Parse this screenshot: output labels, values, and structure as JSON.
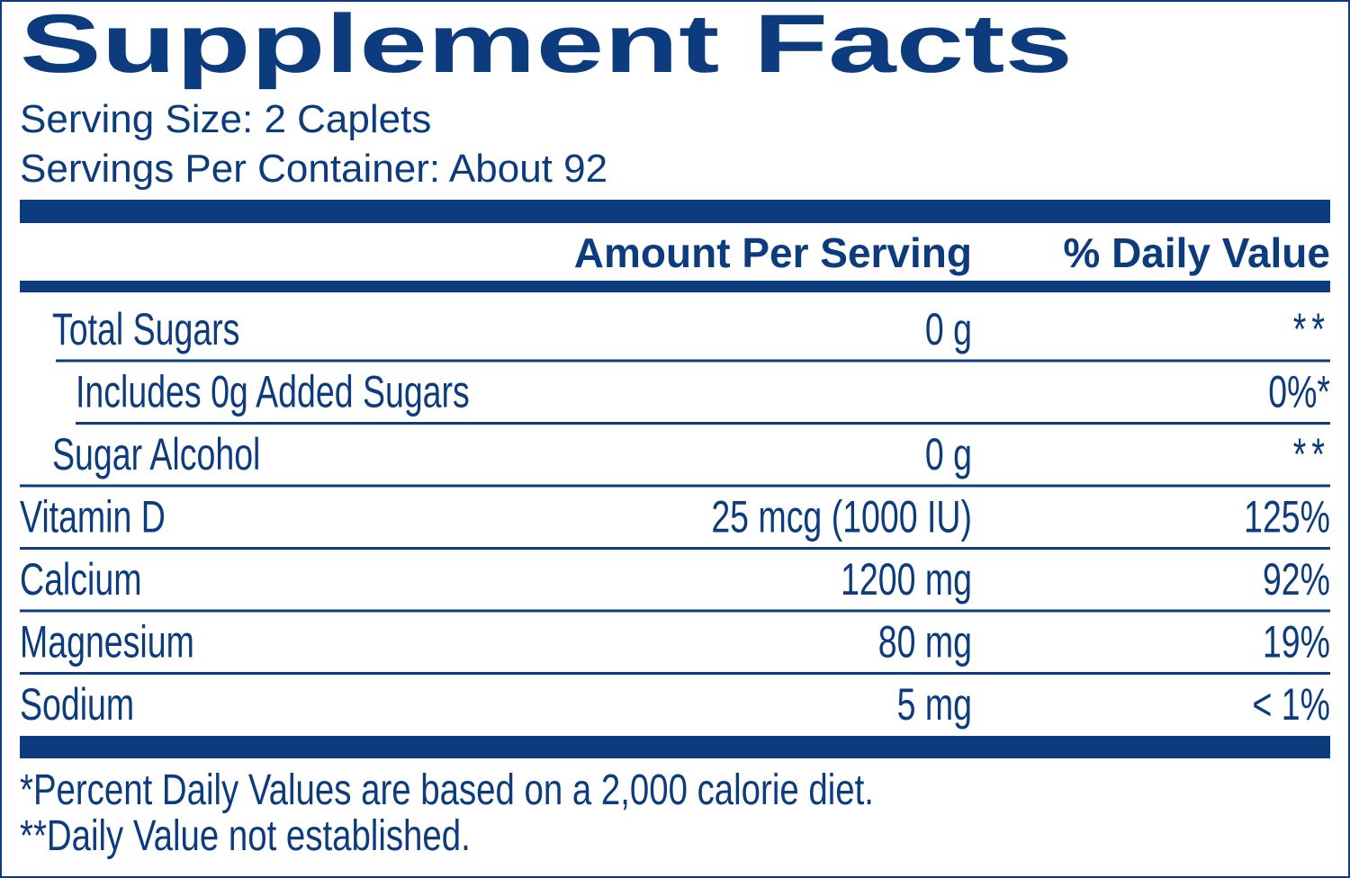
{
  "header": {
    "title": "Supplement Facts",
    "serving_size": "Serving Size: 2 Caplets",
    "servings_per_container": "Servings Per Container: About 92"
  },
  "table": {
    "columns": [
      "Amount Per Serving",
      "% Daily Value"
    ],
    "rows": [
      {
        "name": "Total Sugars",
        "amount": "0 g",
        "daily_value": "**"
      },
      {
        "name": "Includes 0g Added Sugars",
        "daily_value": "0%*"
      },
      {
        "name": "Sugar Alcohol",
        "amount": "0 g",
        "daily_value": "**"
      },
      {
        "name": "Vitamin D",
        "amount": "25 mcg (1000 IU)",
        "daily_value": "125%"
      },
      {
        "name": "Calcium",
        "amount": "1200 mg",
        "daily_value": "92%"
      },
      {
        "name": "Magnesium",
        "amount": "80 mg",
        "daily_value": "19%"
      },
      {
        "name": "Sodium",
        "amount": "5 mg",
        "daily_value": "< 1%"
      }
    ]
  },
  "footnotes": [
    "*Percent Daily Values are based on a 2,000 calorie diet.",
    "**Daily Value not established."
  ]
}
